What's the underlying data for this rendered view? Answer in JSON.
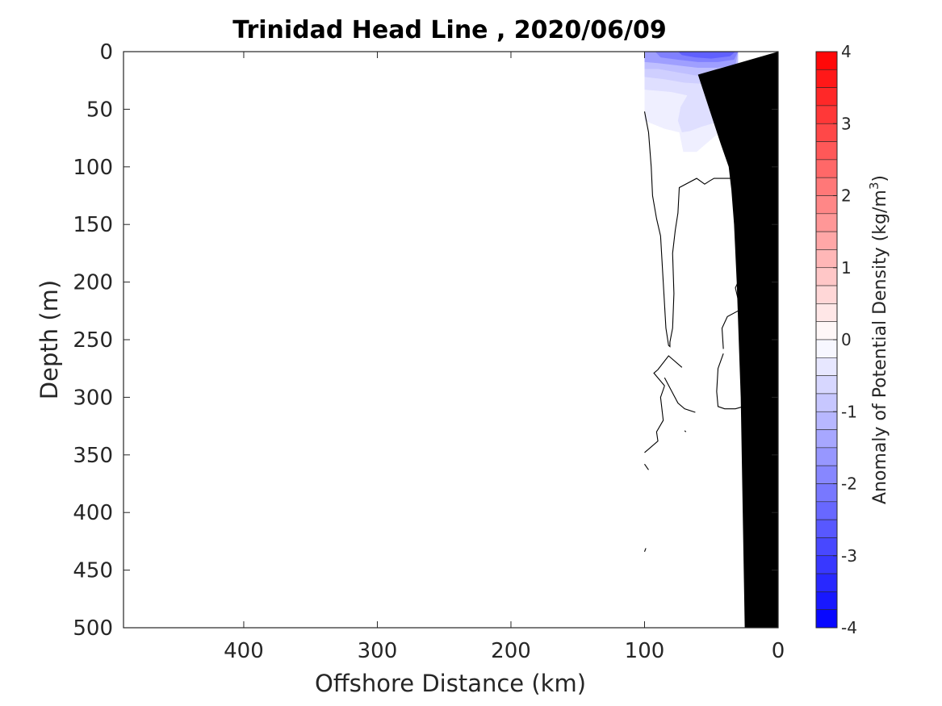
{
  "chart_data": {
    "type": "contour",
    "title": "Trinidad Head Line , 2020/06/09",
    "xlabel": "Offshore Distance (km)",
    "ylabel": "Depth (m)",
    "xlim": [
      490,
      0
    ],
    "ylim": [
      0,
      500
    ],
    "x_reversed": true,
    "y_reversed": true,
    "x_ticks": [
      400,
      300,
      200,
      100,
      0
    ],
    "x_tick_labels": [
      "400",
      "300",
      "200",
      "100",
      "0"
    ],
    "y_ticks": [
      0,
      50,
      100,
      150,
      200,
      250,
      300,
      350,
      400,
      450,
      500
    ],
    "y_tick_labels": [
      "0",
      "50",
      "100",
      "150",
      "200",
      "250",
      "300",
      "350",
      "400",
      "450",
      "500"
    ],
    "colorbar": {
      "label": "Anomaly of Potential Density (kg/m",
      "label_superscript": "3",
      "label_suffix": ")",
      "range": [
        -4,
        4
      ],
      "step": 0.25,
      "ticks": [
        4,
        3,
        2,
        1,
        0,
        -1,
        -2,
        -3,
        -4
      ],
      "tick_labels": [
        "4",
        "3",
        "2",
        "1",
        "0",
        "-1",
        "-2",
        "-3",
        "-4"
      ],
      "high_color": "#ff0000",
      "low_color": "#0000ff",
      "mid_color": "#ffffff"
    },
    "filled_regions": [
      {
        "anomaly": -0.25,
        "points": [
          [
            100,
            0
          ],
          [
            30,
            0
          ],
          [
            30,
            64
          ],
          [
            46,
            72
          ],
          [
            61,
            87
          ],
          [
            71,
            87
          ],
          [
            74,
            70
          ],
          [
            85,
            67
          ],
          [
            100,
            60
          ]
        ]
      },
      {
        "anomaly": -0.5,
        "points": [
          [
            100,
            0
          ],
          [
            30,
            0
          ],
          [
            30,
            48
          ],
          [
            36,
            58
          ],
          [
            48,
            62
          ],
          [
            57,
            65
          ],
          [
            66,
            69
          ],
          [
            72,
            70
          ],
          [
            75,
            60
          ],
          [
            73,
            48
          ],
          [
            68,
            38
          ],
          [
            80,
            35
          ],
          [
            100,
            33
          ]
        ]
      },
      {
        "anomaly": -0.75,
        "points": [
          [
            100,
            0
          ],
          [
            30,
            0
          ],
          [
            30,
            30
          ],
          [
            40,
            29
          ],
          [
            55,
            28
          ],
          [
            70,
            27
          ],
          [
            85,
            24
          ],
          [
            100,
            22
          ]
        ]
      },
      {
        "anomaly": -1.0,
        "points": [
          [
            100,
            0
          ],
          [
            30,
            0
          ],
          [
            30,
            18
          ],
          [
            45,
            22
          ],
          [
            60,
            21
          ],
          [
            75,
            18
          ],
          [
            90,
            15
          ],
          [
            100,
            15
          ]
        ]
      },
      {
        "anomaly": -1.5,
        "points": [
          [
            100,
            0
          ],
          [
            30,
            0
          ],
          [
            32,
            12
          ],
          [
            45,
            14
          ],
          [
            60,
            14
          ],
          [
            75,
            12
          ],
          [
            90,
            10
          ],
          [
            100,
            9
          ]
        ]
      },
      {
        "anomaly": -2.0,
        "points": [
          [
            92,
            0
          ],
          [
            30,
            0
          ],
          [
            33,
            7
          ],
          [
            45,
            9
          ],
          [
            60,
            9
          ],
          [
            75,
            7
          ],
          [
            88,
            5
          ]
        ]
      },
      {
        "anomaly": -2.5,
        "points": [
          [
            75,
            0
          ],
          [
            32,
            0
          ],
          [
            36,
            4
          ],
          [
            50,
            6
          ],
          [
            62,
            5
          ],
          [
            72,
            3
          ]
        ]
      }
    ],
    "zero_contours": [
      [
        [
          100,
          52
        ],
        [
          97,
          70
        ],
        [
          95,
          100
        ],
        [
          94,
          125
        ],
        [
          91,
          145
        ],
        [
          88,
          160
        ],
        [
          86,
          200
        ],
        [
          84,
          240
        ],
        [
          82,
          255
        ],
        [
          81,
          256
        ],
        [
          81,
          252
        ],
        [
          79,
          240
        ],
        [
          78,
          210
        ],
        [
          79,
          175
        ],
        [
          77,
          155
        ],
        [
          75,
          140
        ],
        [
          74,
          118
        ],
        [
          61,
          110
        ],
        [
          55,
          115
        ],
        [
          51,
          112
        ],
        [
          48,
          110
        ],
        [
          36,
          110
        ],
        [
          30,
          106
        ]
      ],
      [
        [
          30,
          200
        ],
        [
          32,
          205
        ],
        [
          30,
          215
        ]
      ],
      [
        [
          30,
          225
        ],
        [
          38,
          230
        ],
        [
          42,
          240
        ],
        [
          41,
          258
        ]
      ],
      [
        [
          41,
          262
        ],
        [
          45,
          275
        ],
        [
          46,
          295
        ],
        [
          45,
          308
        ],
        [
          40,
          310
        ],
        [
          32,
          310
        ],
        [
          26,
          308
        ]
      ],
      [
        [
          72,
          274
        ],
        [
          82,
          264
        ],
        [
          90,
          276
        ],
        [
          93,
          279
        ],
        [
          85,
          290
        ]
      ],
      [
        [
          85,
          290
        ],
        [
          88,
          300
        ],
        [
          86,
          320
        ],
        [
          91,
          330
        ],
        [
          90,
          338
        ],
        [
          97,
          345
        ],
        [
          100,
          348
        ]
      ],
      [
        [
          85,
          283
        ],
        [
          80,
          294
        ],
        [
          75,
          305
        ],
        [
          70,
          310
        ],
        [
          62,
          313
        ]
      ],
      [
        [
          100,
          358
        ],
        [
          97,
          363
        ]
      ],
      [
        [
          100,
          434
        ],
        [
          99,
          431
        ]
      ],
      [
        [
          70,
          329
        ],
        [
          69,
          330
        ]
      ]
    ],
    "bathymetry": {
      "color": "#000000",
      "points": [
        [
          0,
          0
        ],
        [
          0,
          500
        ],
        [
          25,
          500
        ],
        [
          28,
          300
        ],
        [
          31,
          200
        ],
        [
          33,
          150
        ],
        [
          35,
          120
        ],
        [
          37,
          100
        ],
        [
          43,
          80
        ],
        [
          60,
          20
        ],
        [
          0,
          0
        ]
      ]
    }
  }
}
